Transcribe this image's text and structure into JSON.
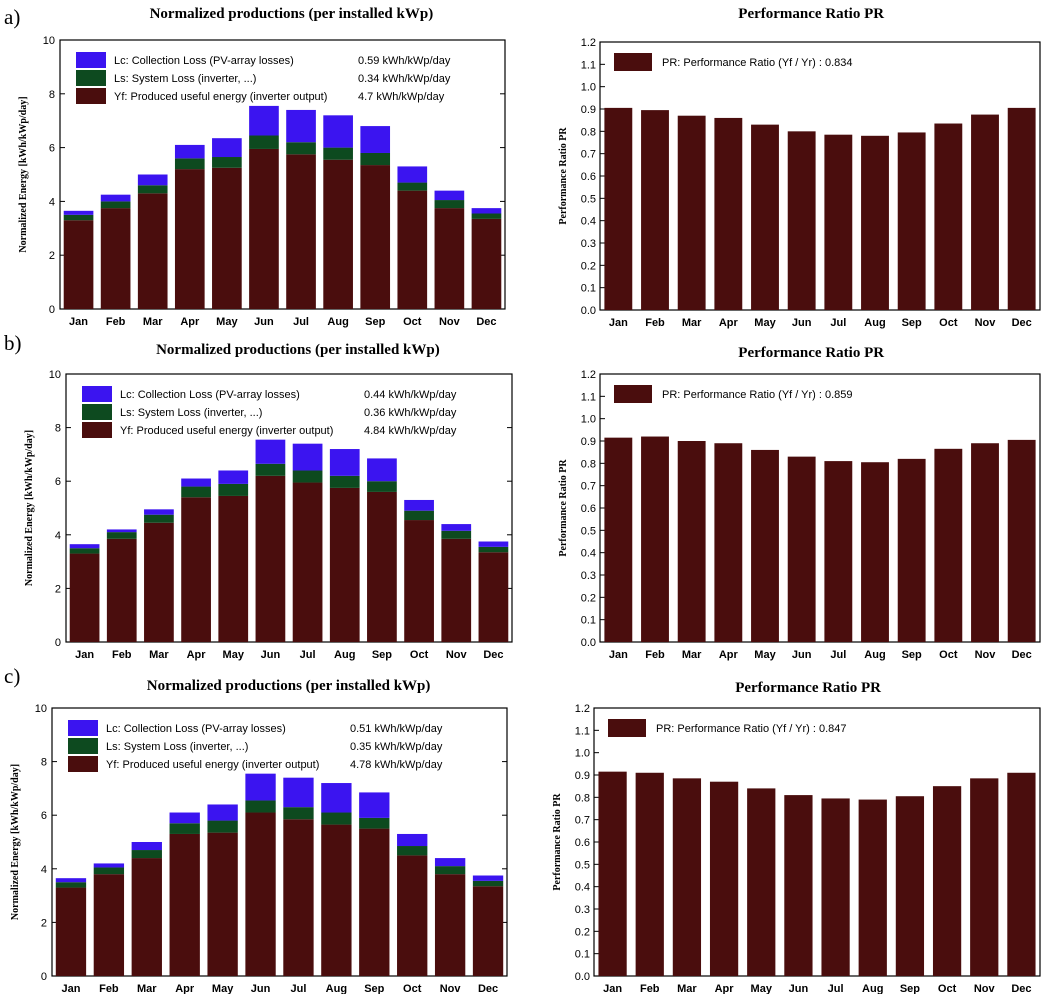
{
  "panel_labels": [
    "a)",
    "b)",
    "c)"
  ],
  "colors": {
    "yf": "#4a0d0d",
    "ls": "#0d4a1f",
    "lc": "#3b14f0",
    "pr": "#4a0d0d"
  },
  "chart_data": [
    {
      "panel": "a)",
      "type": "bar",
      "stacked": true,
      "title": "Normalized productions (per installed kWp)",
      "ylabel": "Normalized Energy [kWh/kWp/day]",
      "ylim": [
        0,
        10
      ],
      "yticks": [
        0,
        2,
        4,
        6,
        8,
        10
      ],
      "categories": [
        "Jan",
        "Feb",
        "Mar",
        "Apr",
        "May",
        "Jun",
        "Jul",
        "Aug",
        "Sep",
        "Oct",
        "Nov",
        "Dec"
      ],
      "legend_placement": "top-left",
      "series": [
        {
          "name": "Yf: Produced useful energy  (inverter output)",
          "legend_value": "4.7 kWh/kWp/day",
          "values": [
            3.3,
            3.75,
            4.3,
            5.2,
            5.25,
            5.95,
            5.75,
            5.55,
            5.35,
            4.4,
            3.75,
            3.35
          ]
        },
        {
          "name": "Ls: System Loss  (inverter, ...)",
          "legend_value": "0.34 kWh/kWp/day",
          "values": [
            0.2,
            0.25,
            0.3,
            0.4,
            0.4,
            0.5,
            0.45,
            0.45,
            0.45,
            0.3,
            0.3,
            0.2
          ]
        },
        {
          "name": "Lc: Collection Loss (PV-array losses)",
          "legend_value": "0.59 kWh/kWp/day",
          "values": [
            0.15,
            0.25,
            0.4,
            0.5,
            0.7,
            1.1,
            1.2,
            1.2,
            1.0,
            0.6,
            0.35,
            0.2
          ]
        }
      ]
    },
    {
      "panel": "a)",
      "type": "bar",
      "title": "Performance Ratio PR",
      "ylabel": "Performance Ratio PR",
      "ylim": [
        0,
        1.2
      ],
      "yticks": [
        0,
        0.1,
        0.2,
        0.3,
        0.4,
        0.5,
        0.6,
        0.7,
        0.8,
        0.9,
        1.0,
        1.1,
        1.2
      ],
      "ytick_labels": [
        "0.0",
        "0.1",
        "0.2",
        "0.3",
        "0.4",
        "0.5",
        "0.6",
        "0.7",
        "0.8",
        "0.9",
        "1.0",
        "1.1",
        "1.2"
      ],
      "categories": [
        "Jan",
        "Feb",
        "Mar",
        "Apr",
        "May",
        "Jun",
        "Jul",
        "Aug",
        "Sep",
        "Oct",
        "Nov",
        "Dec"
      ],
      "legend_placement": "top-left",
      "series": [
        {
          "name": "PR: Performance Ratio (Yf / Yr) :  0.834",
          "values": [
            0.905,
            0.895,
            0.87,
            0.86,
            0.83,
            0.8,
            0.785,
            0.78,
            0.795,
            0.835,
            0.875,
            0.905
          ]
        }
      ]
    },
    {
      "panel": "b)",
      "type": "bar",
      "stacked": true,
      "title": "Normalized productions (per installed kWp)",
      "ylabel": "Normalized Energy [kWh/kWp/day]",
      "ylim": [
        0,
        10
      ],
      "yticks": [
        0,
        2,
        4,
        6,
        8,
        10
      ],
      "categories": [
        "Jan",
        "Feb",
        "Mar",
        "Apr",
        "May",
        "Jun",
        "Jul",
        "Aug",
        "Sep",
        "Oct",
        "Nov",
        "Dec"
      ],
      "legend_placement": "top-left",
      "series": [
        {
          "name": "Yf: Produced useful energy  (inverter output)",
          "legend_value": "4.84 kWh/kWp/day",
          "values": [
            3.3,
            3.85,
            4.45,
            5.4,
            5.45,
            6.2,
            5.95,
            5.75,
            5.6,
            4.55,
            3.85,
            3.35
          ]
        },
        {
          "name": "Ls: System Loss  (inverter, ...)",
          "legend_value": "0.36 kWh/kWp/day",
          "values": [
            0.2,
            0.25,
            0.3,
            0.4,
            0.45,
            0.45,
            0.45,
            0.45,
            0.4,
            0.35,
            0.3,
            0.2
          ]
        },
        {
          "name": "Lc: Collection Loss (PV-array losses)",
          "legend_value": "0.44 kWh/kWp/day",
          "values": [
            0.15,
            0.1,
            0.2,
            0.3,
            0.5,
            0.9,
            1.0,
            1.0,
            0.85,
            0.4,
            0.25,
            0.2
          ]
        }
      ]
    },
    {
      "panel": "b)",
      "type": "bar",
      "title": "Performance Ratio PR",
      "ylabel": "Performance Ratio PR",
      "ylim": [
        0,
        1.2
      ],
      "yticks": [
        0,
        0.1,
        0.2,
        0.3,
        0.4,
        0.5,
        0.6,
        0.7,
        0.8,
        0.9,
        1.0,
        1.1,
        1.2
      ],
      "ytick_labels": [
        "0.0",
        "0.1",
        "0.2",
        "0.3",
        "0.4",
        "0.5",
        "0.6",
        "0.7",
        "0.8",
        "0.9",
        "1.0",
        "1.1",
        "1.2"
      ],
      "categories": [
        "Jan",
        "Feb",
        "Mar",
        "Apr",
        "May",
        "Jun",
        "Jul",
        "Aug",
        "Sep",
        "Oct",
        "Nov",
        "Dec"
      ],
      "legend_placement": "top-left",
      "series": [
        {
          "name": "PR: Performance Ratio (Yf / Yr) :  0.859",
          "values": [
            0.915,
            0.92,
            0.9,
            0.89,
            0.86,
            0.83,
            0.81,
            0.805,
            0.82,
            0.865,
            0.89,
            0.905
          ]
        }
      ]
    },
    {
      "panel": "c)",
      "type": "bar",
      "stacked": true,
      "title": "Normalized productions (per installed kWp)",
      "ylabel": "Normalized Energy [kWh/kWp/day]",
      "ylim": [
        0,
        10
      ],
      "yticks": [
        0,
        2,
        4,
        6,
        8,
        10
      ],
      "categories": [
        "Jan",
        "Feb",
        "Mar",
        "Apr",
        "May",
        "Jun",
        "Jul",
        "Aug",
        "Sep",
        "Oct",
        "Nov",
        "Dec"
      ],
      "legend_placement": "top-left",
      "series": [
        {
          "name": "Yf: Produced useful energy  (inverter output)",
          "legend_value": "4.78 kWh/kWp/day",
          "values": [
            3.3,
            3.8,
            4.4,
            5.3,
            5.35,
            6.1,
            5.85,
            5.65,
            5.5,
            4.5,
            3.8,
            3.35
          ]
        },
        {
          "name": "Ls: System Loss  (inverter, ...)",
          "legend_value": "0.35 kWh/kWp/day",
          "values": [
            0.2,
            0.25,
            0.3,
            0.4,
            0.45,
            0.45,
            0.45,
            0.45,
            0.4,
            0.35,
            0.3,
            0.2
          ]
        },
        {
          "name": "Lc: Collection Loss (PV-array losses)",
          "legend_value": "0.51 kWh/kWp/day",
          "values": [
            0.15,
            0.15,
            0.3,
            0.4,
            0.6,
            1.0,
            1.1,
            1.1,
            0.95,
            0.45,
            0.3,
            0.2
          ]
        }
      ]
    },
    {
      "panel": "c)",
      "type": "bar",
      "title": "Performance Ratio PR",
      "ylabel": "Performance Ratio PR",
      "ylim": [
        0,
        1.2
      ],
      "yticks": [
        0,
        0.1,
        0.2,
        0.3,
        0.4,
        0.5,
        0.6,
        0.7,
        0.8,
        0.9,
        1.0,
        1.1,
        1.2
      ],
      "ytick_labels": [
        "0.0",
        "0.1",
        "0.2",
        "0.3",
        "0.4",
        "0.5",
        "0.6",
        "0.7",
        "0.8",
        "0.9",
        "1.0",
        "1.1",
        "1.2"
      ],
      "categories": [
        "Jan",
        "Feb",
        "Mar",
        "Apr",
        "May",
        "Jun",
        "Jul",
        "Aug",
        "Sep",
        "Oct",
        "Nov",
        "Dec"
      ],
      "legend_placement": "top-left",
      "series": [
        {
          "name": "PR: Performance Ratio (Yf / Yr) :  0.847",
          "values": [
            0.915,
            0.91,
            0.885,
            0.87,
            0.84,
            0.81,
            0.795,
            0.79,
            0.805,
            0.85,
            0.885,
            0.91
          ]
        }
      ]
    }
  ]
}
